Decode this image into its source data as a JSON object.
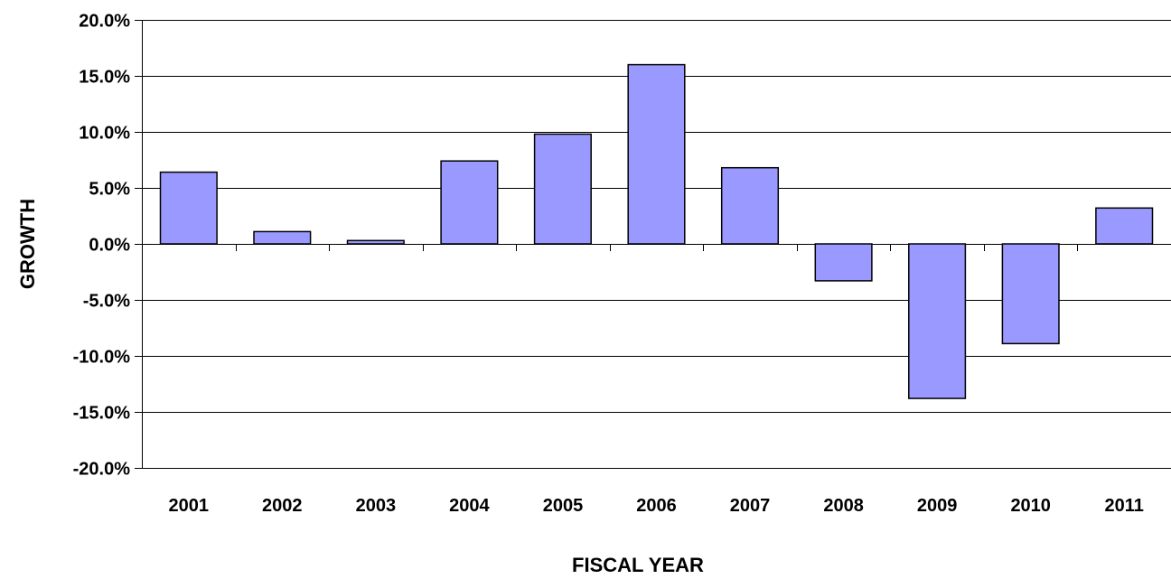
{
  "chart_data": {
    "type": "bar",
    "title": "",
    "xlabel": "FISCAL YEAR",
    "ylabel": "GROWTH",
    "categories": [
      "2001",
      "2002",
      "2003",
      "2004",
      "2005",
      "2006",
      "2007",
      "2008",
      "2009",
      "2010",
      "2011"
    ],
    "values": [
      6.4,
      1.1,
      0.3,
      7.4,
      9.8,
      16.0,
      6.8,
      -3.3,
      -13.8,
      -8.9,
      3.2
    ],
    "value_unit": "percent",
    "ylim": [
      -20.0,
      20.0
    ],
    "yticks": [
      -20.0,
      -15.0,
      -10.0,
      -5.0,
      0.0,
      5.0,
      10.0,
      15.0,
      20.0
    ],
    "ytick_labels": [
      "-20.0%",
      "-15.0%",
      "-10.0%",
      "-5.0%",
      "0.0%",
      "5.0%",
      "10.0%",
      "15.0%",
      "20.0%"
    ],
    "grid": true,
    "legend": "none",
    "colors": {
      "bar_fill": "#9999FF",
      "bar_stroke": "#000000",
      "grid": "#000000",
      "background": "#FFFFFF"
    }
  }
}
